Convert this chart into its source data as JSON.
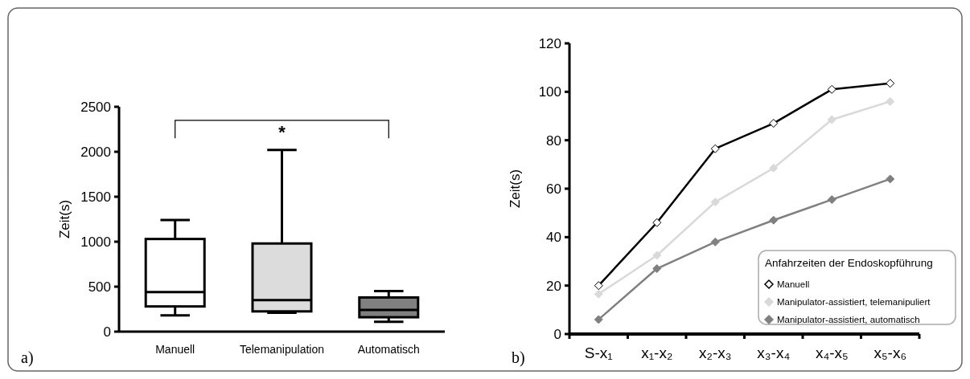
{
  "chart_data": [
    {
      "type": "box",
      "ylabel": "Zeit(s)",
      "categories": [
        "Manuell",
        "Telemanipulation",
        "Automatisch"
      ],
      "boxes": [
        {
          "low": 180,
          "q1": 280,
          "median": 440,
          "q3": 1030,
          "high": 1240
        },
        {
          "low": 210,
          "q1": 225,
          "median": 350,
          "q3": 980,
          "high": 2020
        },
        {
          "low": 110,
          "q1": 160,
          "median": 240,
          "q3": 380,
          "high": 450
        }
      ],
      "colors": [
        "#ffffff",
        "#dcdcdc",
        "#808080"
      ],
      "ylim": [
        0,
        2500
      ],
      "yticks": [
        0,
        500,
        1000,
        1500,
        2000,
        2500
      ],
      "grid": false,
      "annotations": [
        "*",
        "a)"
      ]
    },
    {
      "type": "line",
      "ylabel": "Zeit(s)",
      "categories": [
        "S-x₁",
        "x₁-x₂",
        "x₂-x₃",
        "x₃-x₄",
        "x₄-x₅",
        "x₅-x₆"
      ],
      "series": [
        {
          "name": "Manuell",
          "color": "#000000",
          "values": [
            20,
            46,
            76.5,
            87,
            101,
            103.5
          ]
        },
        {
          "name": "Manipulator-assistiert, telemanipuliert",
          "color": "#d9d9d9",
          "values": [
            16.5,
            32.5,
            54.5,
            68.5,
            88.5,
            96
          ]
        },
        {
          "name": "Manipulator-assistiert, automatisch",
          "color": "#808080",
          "values": [
            6,
            27,
            38,
            47,
            55.5,
            64
          ]
        }
      ],
      "ylim": [
        0,
        120
      ],
      "yticks": [
        0,
        20,
        40,
        60,
        80,
        100,
        120
      ],
      "grid": false,
      "marker": "diamond",
      "line_style": "solid",
      "legend": "bottom right",
      "legend_title": "Anfahrzeiten der Endoskopführung",
      "annotations": [
        "b)"
      ]
    }
  ]
}
